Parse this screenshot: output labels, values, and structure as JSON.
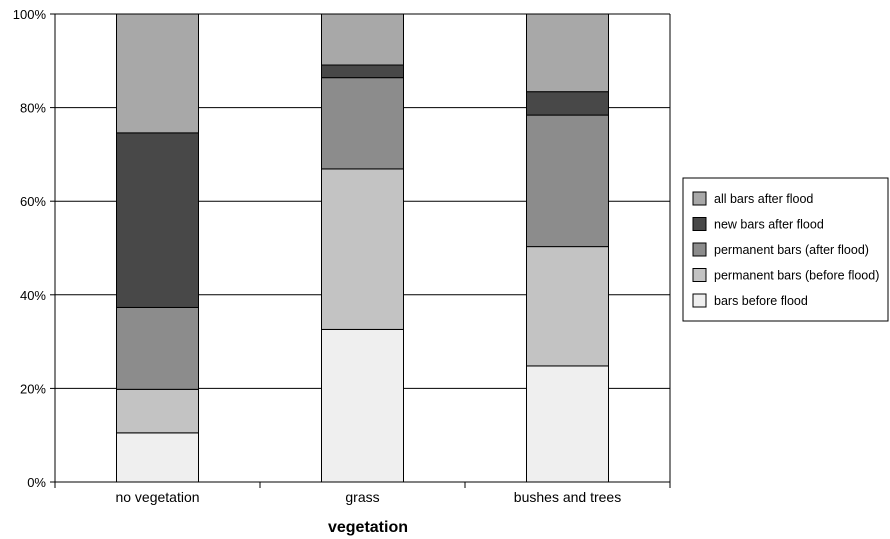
{
  "chart_data": {
    "type": "bar",
    "stacked": true,
    "categories": [
      "no vegetation",
      "grass",
      "bushes and trees"
    ],
    "xlabel": "vegetation",
    "ylabel": "",
    "ylim": [
      0,
      100
    ],
    "yticks": [
      "0%",
      "20%",
      "40%",
      "60%",
      "80%",
      "100%"
    ],
    "grid": true,
    "legend_position": "right",
    "series": [
      {
        "name": "bars before flood",
        "color": "#efefef",
        "values": [
          10.5,
          32.6,
          24.8
        ]
      },
      {
        "name": "permanent bars (before flood)",
        "color": "#c3c3c3",
        "values": [
          9.3,
          34.3,
          25.5
        ]
      },
      {
        "name": "permanent bars (after flood)",
        "color": "#8c8c8c",
        "values": [
          17.5,
          19.5,
          28.1
        ]
      },
      {
        "name": "new bars after flood",
        "color": "#484848",
        "values": [
          37.3,
          2.7,
          5.0
        ]
      },
      {
        "name": "all bars after flood",
        "color": "#a8a8a8",
        "values": [
          25.4,
          10.9,
          16.6
        ]
      }
    ],
    "legend_order": [
      "all bars after flood",
      "new bars after flood",
      "permanent bars (after flood)",
      "permanent bars (before flood)",
      "bars before flood"
    ]
  }
}
